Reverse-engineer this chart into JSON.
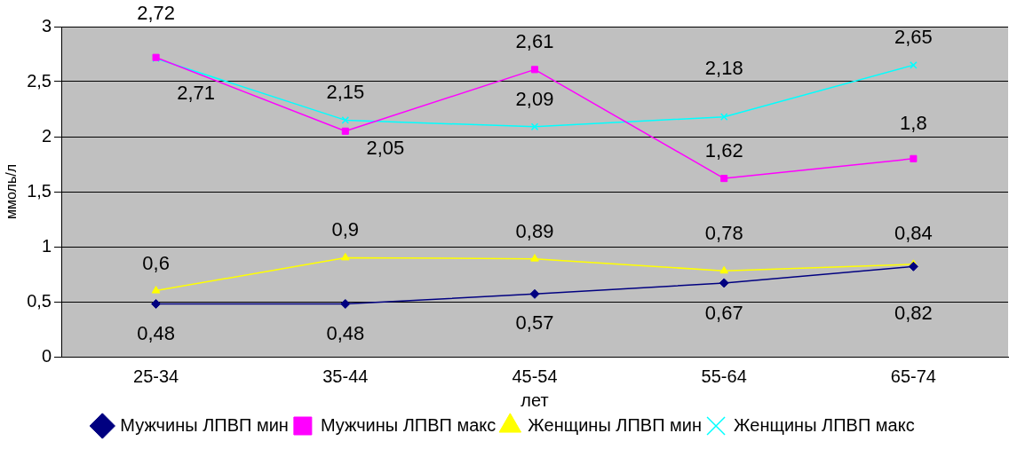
{
  "chart_data": {
    "type": "line",
    "xlabel": "лет",
    "ylabel": "ммоль/л",
    "categories": [
      "25-34",
      "35-44",
      "45-54",
      "55-64",
      "65-74"
    ],
    "series": [
      {
        "name": "Мужчины ЛПВП мин",
        "color": "#000080",
        "marker": "diamond",
        "values": [
          0.48,
          0.48,
          0.57,
          0.67,
          0.82
        ],
        "value_labels": [
          "0,48",
          "0,48",
          "0,57",
          "0,67",
          "0,82"
        ]
      },
      {
        "name": "Мужчины ЛПВП макс",
        "color": "#ff00ff",
        "marker": "square",
        "values": [
          2.72,
          2.05,
          2.61,
          1.62,
          1.8
        ],
        "value_labels": [
          "2,72",
          "2,05",
          "2,61",
          "1,62",
          "1,8"
        ]
      },
      {
        "name": "Женщины ЛПВП мин",
        "color": "#ffff00",
        "marker": "triangle",
        "values": [
          0.6,
          0.9,
          0.89,
          0.78,
          0.84
        ],
        "value_labels": [
          "0,6",
          "0,9",
          "0,89",
          "0,78",
          "0,84"
        ]
      },
      {
        "name": "Женщины ЛПВП макс",
        "color": "#00ffff",
        "marker": "cross",
        "values": [
          2.71,
          2.15,
          2.09,
          2.18,
          2.65
        ],
        "value_labels": [
          "2,71",
          "2,15",
          "2,09",
          "2,18",
          "2,65"
        ]
      }
    ],
    "ylim": [
      0,
      3
    ],
    "yticks": [
      0,
      {
        "value": 0.5,
        "label": "0,5"
      },
      1,
      {
        "value": 1.5,
        "label": "1,5"
      },
      2,
      {
        "value": 2.5,
        "label": "2,5"
      },
      3
    ],
    "grid": "y",
    "legend": "bottom",
    "line_style": "solid"
  }
}
